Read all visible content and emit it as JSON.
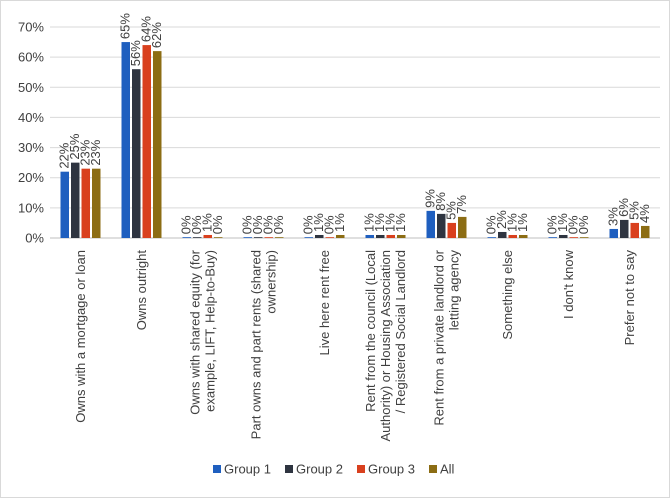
{
  "chart_data": {
    "type": "bar",
    "title": "",
    "xlabel": "",
    "ylabel": "",
    "ylim": [
      0,
      70
    ],
    "yticks": [
      "0%",
      "10%",
      "20%",
      "30%",
      "40%",
      "50%",
      "60%",
      "70%"
    ],
    "grid": true,
    "legend_position": "bottom",
    "categories": [
      [
        "Owns with a mortgage or loan"
      ],
      [
        "Owns outright"
      ],
      [
        "Owns with shared equity (for",
        "example, LIFT, Help-to-Buy)"
      ],
      [
        "Part owns and part rents (shared",
        "ownership)"
      ],
      [
        "Live here rent free"
      ],
      [
        "Rent from the council (Local",
        "Authority) or Housing Association",
        "/ Registered Social Landlord"
      ],
      [
        "Rent from a private landlord or",
        "letting agency"
      ],
      [
        "Something else"
      ],
      [
        "I don't know"
      ],
      [
        "Prefer not to say"
      ]
    ],
    "series": [
      {
        "name": "Group 1",
        "color": "#1f5fbf",
        "values": [
          22,
          65,
          0,
          0,
          0,
          1,
          9,
          0,
          0,
          3
        ],
        "labels": [
          "22%",
          "65%",
          "0%",
          "0%",
          "0%",
          "1%",
          "9%",
          "0%",
          "0%",
          "3%"
        ]
      },
      {
        "name": "Group 2",
        "color": "#2e3440",
        "values": [
          25,
          56,
          0,
          0,
          1,
          1,
          8,
          2,
          1,
          6
        ],
        "labels": [
          "25%",
          "56%",
          "0%",
          "0%",
          "1%",
          "1%",
          "8%",
          "2%",
          "1%",
          "6%"
        ]
      },
      {
        "name": "Group 3",
        "color": "#d9401e",
        "values": [
          23,
          64,
          1,
          0,
          0,
          1,
          5,
          1,
          0,
          5
        ],
        "labels": [
          "23%",
          "64%",
          "1%",
          "0%",
          "0%",
          "1%",
          "5%",
          "1%",
          "0%",
          "5%"
        ]
      },
      {
        "name": "All",
        "color": "#8c6d14",
        "values": [
          23,
          62,
          0,
          0,
          1,
          1,
          7,
          1,
          0,
          4
        ],
        "labels": [
          "23%",
          "62%",
          "0%",
          "0%",
          "1%",
          "1%",
          "7%",
          "1%",
          "0%",
          "4%"
        ]
      }
    ]
  }
}
